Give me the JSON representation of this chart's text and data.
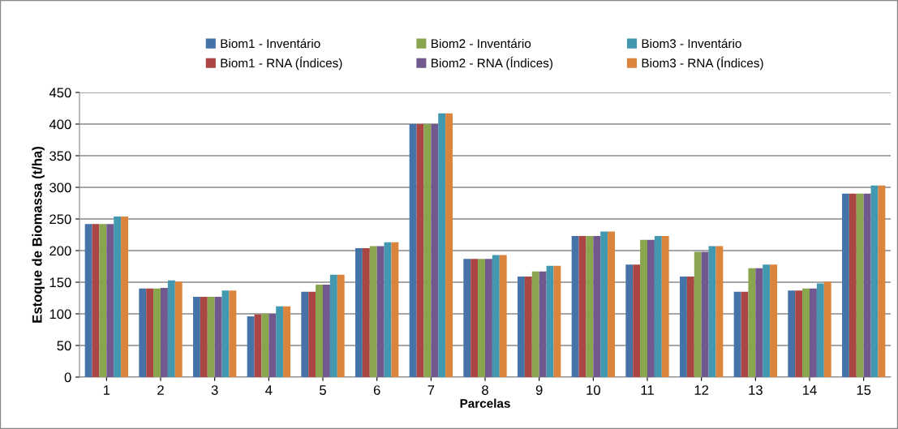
{
  "chart_data": {
    "type": "bar",
    "xlabel": "Parcelas",
    "ylabel": "Estoque de Biomassa (t/ha)",
    "categories": [
      "1",
      "2",
      "3",
      "4",
      "5",
      "6",
      "7",
      "8",
      "9",
      "10",
      "11",
      "12",
      "13",
      "14",
      "15"
    ],
    "series": [
      {
        "name": "Biom1 - Inventário",
        "color": "#4572a7",
        "values": [
          242,
          140,
          127,
          96,
          135,
          204,
          400,
          187,
          159,
          223,
          178,
          159,
          135,
          137,
          290
        ]
      },
      {
        "name": "Biom1 - RNA (Índices)",
        "color": "#aa4643",
        "values": [
          242,
          140,
          127,
          99,
          135,
          204,
          400,
          187,
          159,
          223,
          178,
          159,
          135,
          137,
          290
        ]
      },
      {
        "name": "Biom2 - Inventário",
        "color": "#89a54e",
        "values": [
          242,
          140,
          127,
          100,
          146,
          207,
          400,
          187,
          167,
          223,
          217,
          198,
          172,
          140,
          290
        ]
      },
      {
        "name": "Biom2 - RNA (Índices)",
        "color": "#71588f",
        "values": [
          242,
          141,
          127,
          100,
          146,
          207,
          400,
          187,
          167,
          223,
          217,
          198,
          172,
          140,
          290
        ]
      },
      {
        "name": "Biom3 - Inventário",
        "color": "#4198af",
        "values": [
          254,
          153,
          137,
          112,
          162,
          213,
          417,
          193,
          176,
          230,
          223,
          207,
          178,
          148,
          303
        ]
      },
      {
        "name": "Biom3 - RNA (Índices)",
        "color": "#db843d",
        "values": [
          254,
          151,
          137,
          112,
          162,
          213,
          417,
          193,
          176,
          230,
          223,
          207,
          178,
          151,
          303
        ]
      }
    ],
    "ylim": [
      0,
      450
    ],
    "yticks": [
      0,
      50,
      100,
      150,
      200,
      250,
      300,
      350,
      400,
      450
    ],
    "grid": "y",
    "legend": "top"
  }
}
